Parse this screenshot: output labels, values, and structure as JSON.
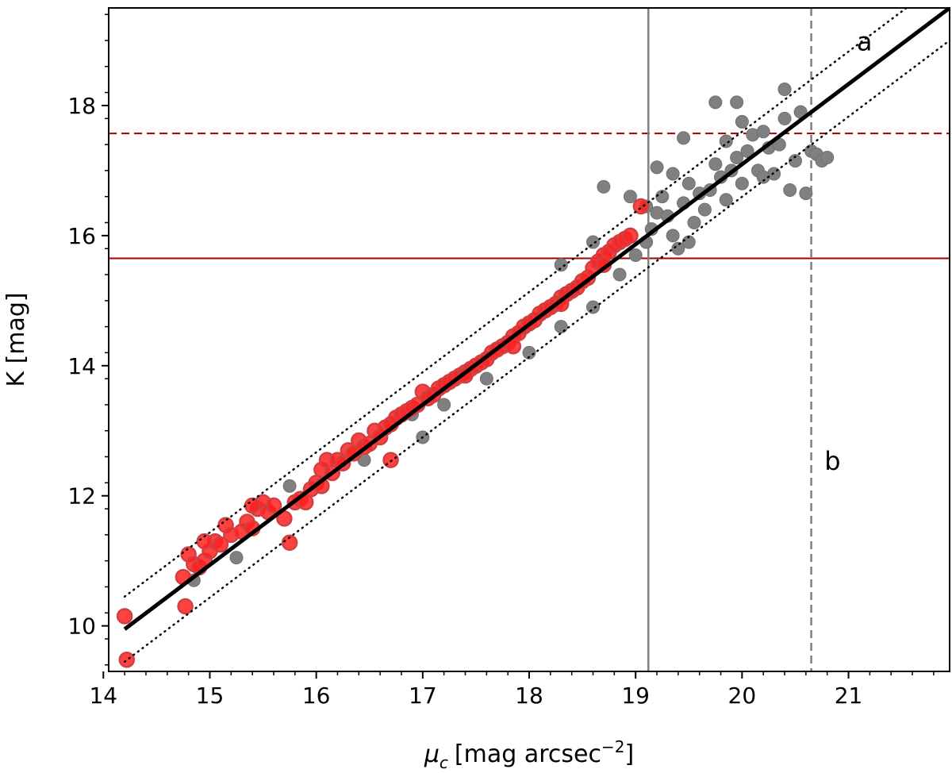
{
  "chart_data": {
    "type": "scatter",
    "title": "",
    "xlabel_prefix": "μ",
    "xlabel_sub": "c",
    "xlabel_unit": "[mag arcsec",
    "xlabel_sup": "−2",
    "xlabel_close": "]",
    "ylabel": "K [mag]",
    "xlim": [
      14.05,
      21.95
    ],
    "ylim": [
      9.3,
      19.5
    ],
    "xticks": [
      14,
      15,
      16,
      17,
      18,
      19,
      20,
      21
    ],
    "yticks": [
      10,
      12,
      14,
      16,
      18
    ],
    "xtick_labels": [
      "14",
      "15",
      "16",
      "17",
      "18",
      "19",
      "20",
      "21"
    ],
    "ytick_labels": [
      "10",
      "12",
      "14",
      "16",
      "18"
    ],
    "grid": false,
    "fit_line": {
      "x": [
        14.2,
        21.95
      ],
      "y": [
        9.95,
        19.5
      ],
      "color": "#000000",
      "style": "solid"
    },
    "upper_dotted": {
      "x": [
        14.2,
        21.95
      ],
      "y": [
        10.45,
        20.0
      ],
      "color": "#000000",
      "style": "dotted"
    },
    "lower_dotted": {
      "x": [
        14.2,
        21.95
      ],
      "y": [
        9.45,
        19.0
      ],
      "color": "#000000",
      "style": "dotted"
    },
    "hlines": [
      {
        "y": 15.65,
        "color": "#a00000",
        "style": "solid"
      },
      {
        "y": 17.57,
        "color": "#a00000",
        "style": "dashed"
      }
    ],
    "vlines": [
      {
        "x": 19.12,
        "color": "#808080",
        "style": "solid"
      },
      {
        "x": 20.65,
        "color": "#808080",
        "style": "dashed"
      }
    ],
    "annotations": [
      {
        "text": "a",
        "x": 21.15,
        "y": 18.85
      },
      {
        "text": "b",
        "x": 20.85,
        "y": 12.4
      }
    ],
    "series": [
      {
        "color": "#ff2020",
        "edge": "#d04040",
        "points": [
          [
            14.2,
            10.15
          ],
          [
            14.22,
            9.48
          ],
          [
            14.75,
            10.75
          ],
          [
            14.77,
            10.3
          ],
          [
            14.8,
            11.1
          ],
          [
            14.85,
            10.95
          ],
          [
            14.9,
            10.9
          ],
          [
            14.95,
            11.0
          ],
          [
            15.0,
            11.15
          ],
          [
            15.05,
            11.3
          ],
          [
            15.1,
            11.25
          ],
          [
            15.15,
            11.55
          ],
          [
            15.2,
            11.4
          ],
          [
            15.3,
            11.45
          ],
          [
            15.35,
            11.6
          ],
          [
            15.4,
            11.5
          ],
          [
            15.45,
            11.8
          ],
          [
            15.5,
            11.9
          ],
          [
            15.55,
            11.75
          ],
          [
            15.6,
            11.85
          ],
          [
            15.7,
            11.65
          ],
          [
            15.75,
            11.28
          ],
          [
            15.8,
            11.9
          ],
          [
            15.85,
            11.95
          ],
          [
            15.9,
            11.9
          ],
          [
            15.95,
            12.1
          ],
          [
            16.0,
            12.2
          ],
          [
            16.05,
            12.4
          ],
          [
            16.1,
            12.55
          ],
          [
            16.15,
            12.35
          ],
          [
            16.2,
            12.55
          ],
          [
            16.25,
            12.5
          ],
          [
            16.3,
            12.7
          ],
          [
            16.35,
            12.65
          ],
          [
            16.4,
            12.85
          ],
          [
            16.45,
            12.75
          ],
          [
            16.5,
            12.8
          ],
          [
            16.55,
            13.0
          ],
          [
            16.6,
            12.9
          ],
          [
            16.65,
            13.05
          ],
          [
            16.7,
            13.1
          ],
          [
            16.75,
            13.2
          ],
          [
            16.8,
            13.25
          ],
          [
            16.85,
            13.3
          ],
          [
            16.9,
            13.35
          ],
          [
            16.95,
            13.4
          ],
          [
            17.0,
            13.6
          ],
          [
            17.05,
            13.5
          ],
          [
            17.1,
            13.55
          ],
          [
            17.15,
            13.65
          ],
          [
            17.2,
            13.7
          ],
          [
            17.25,
            13.75
          ],
          [
            17.3,
            13.8
          ],
          [
            17.35,
            13.85
          ],
          [
            17.4,
            13.9
          ],
          [
            17.45,
            13.95
          ],
          [
            17.5,
            14.0
          ],
          [
            17.55,
            14.05
          ],
          [
            17.6,
            14.1
          ],
          [
            17.65,
            14.2
          ],
          [
            17.7,
            14.25
          ],
          [
            17.75,
            14.3
          ],
          [
            17.8,
            14.35
          ],
          [
            17.85,
            14.45
          ],
          [
            17.9,
            14.5
          ],
          [
            17.95,
            14.6
          ],
          [
            18.0,
            14.65
          ],
          [
            18.05,
            14.7
          ],
          [
            18.1,
            14.8
          ],
          [
            18.15,
            14.85
          ],
          [
            18.2,
            14.9
          ],
          [
            18.25,
            14.95
          ],
          [
            18.3,
            15.05
          ],
          [
            18.35,
            15.1
          ],
          [
            18.4,
            15.15
          ],
          [
            18.45,
            15.2
          ],
          [
            18.5,
            15.3
          ],
          [
            18.55,
            15.35
          ],
          [
            18.6,
            15.5
          ],
          [
            18.65,
            15.6
          ],
          [
            18.7,
            15.7
          ],
          [
            18.75,
            15.75
          ],
          [
            18.8,
            15.85
          ],
          [
            18.85,
            15.9
          ],
          [
            18.9,
            15.95
          ],
          [
            18.95,
            16.0
          ],
          [
            19.05,
            16.45
          ],
          [
            18.7,
            15.55
          ],
          [
            18.3,
            14.95
          ],
          [
            17.85,
            14.3
          ],
          [
            17.4,
            13.85
          ],
          [
            16.7,
            12.55
          ],
          [
            16.05,
            12.15
          ],
          [
            15.4,
            11.85
          ],
          [
            14.95,
            11.3
          ]
        ]
      },
      {
        "color": "#808080",
        "edge": "#707070",
        "points": [
          [
            14.85,
            10.7
          ],
          [
            15.25,
            11.05
          ],
          [
            15.75,
            12.15
          ],
          [
            16.45,
            12.55
          ],
          [
            17.0,
            12.9
          ],
          [
            16.9,
            13.25
          ],
          [
            17.2,
            13.4
          ],
          [
            17.6,
            13.8
          ],
          [
            18.0,
            14.2
          ],
          [
            18.3,
            14.6
          ],
          [
            18.6,
            14.9
          ],
          [
            18.85,
            15.4
          ],
          [
            19.0,
            15.7
          ],
          [
            19.1,
            15.9
          ],
          [
            19.15,
            16.1
          ],
          [
            19.2,
            16.35
          ],
          [
            19.25,
            16.6
          ],
          [
            19.3,
            16.3
          ],
          [
            19.35,
            16.0
          ],
          [
            19.4,
            15.8
          ],
          [
            19.45,
            16.5
          ],
          [
            19.5,
            16.8
          ],
          [
            19.55,
            16.2
          ],
          [
            19.6,
            16.65
          ],
          [
            19.65,
            16.4
          ],
          [
            19.7,
            16.7
          ],
          [
            19.75,
            17.1
          ],
          [
            19.8,
            16.9
          ],
          [
            19.85,
            16.55
          ],
          [
            19.9,
            17.0
          ],
          [
            19.95,
            17.2
          ],
          [
            20.0,
            16.8
          ],
          [
            20.05,
            17.3
          ],
          [
            20.1,
            17.55
          ],
          [
            20.15,
            17.0
          ],
          [
            20.2,
            17.6
          ],
          [
            20.25,
            17.35
          ],
          [
            20.3,
            16.95
          ],
          [
            20.35,
            17.4
          ],
          [
            20.4,
            17.8
          ],
          [
            20.45,
            16.7
          ],
          [
            20.5,
            17.15
          ],
          [
            20.55,
            17.9
          ],
          [
            20.6,
            16.65
          ],
          [
            20.65,
            17.3
          ],
          [
            20.7,
            17.25
          ],
          [
            20.75,
            17.15
          ],
          [
            19.75,
            18.05
          ],
          [
            19.95,
            18.05
          ],
          [
            20.4,
            18.25
          ],
          [
            19.45,
            17.5
          ],
          [
            19.2,
            17.05
          ],
          [
            18.95,
            16.6
          ],
          [
            18.7,
            16.75
          ],
          [
            18.6,
            15.9
          ],
          [
            18.3,
            15.55
          ],
          [
            20.0,
            17.75
          ],
          [
            19.1,
            16.45
          ],
          [
            19.5,
            15.9
          ],
          [
            20.8,
            17.2
          ],
          [
            20.2,
            16.9
          ],
          [
            19.35,
            16.95
          ],
          [
            19.85,
            17.45
          ]
        ]
      }
    ]
  }
}
